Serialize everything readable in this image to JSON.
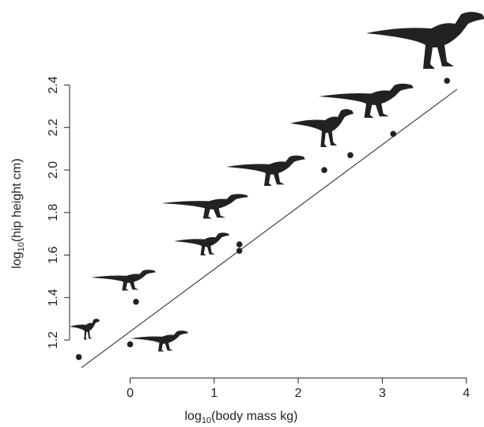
{
  "chart_data": {
    "type": "scatter",
    "x_label": {
      "base": "log",
      "sub": "10",
      "text": "(body mass kg)"
    },
    "y_label": {
      "base": "log",
      "sub": "10",
      "text": "(hip height cm)"
    },
    "x": [
      -0.61,
      0.0,
      0.07,
      1.3,
      1.3,
      2.31,
      2.62,
      3.13,
      3.77
    ],
    "values": [
      1.12,
      1.18,
      1.38,
      1.65,
      1.62,
      2.0,
      2.07,
      2.17,
      2.42
    ],
    "color": "#222222",
    "fit": {
      "x": [
        -0.58,
        3.89
      ],
      "values": [
        1.07,
        2.38
      ],
      "color": "#222222"
    },
    "xlim": [
      -0.72,
      4.21
    ],
    "ylim": [
      1.07,
      2.48
    ],
    "xticks": [
      0,
      1,
      2,
      3,
      4
    ],
    "yticks": [
      1.2,
      1.4,
      1.6,
      1.8,
      {
        "value": 2.0,
        "label": "2.0"
      },
      2.2,
      2.4
    ]
  }
}
